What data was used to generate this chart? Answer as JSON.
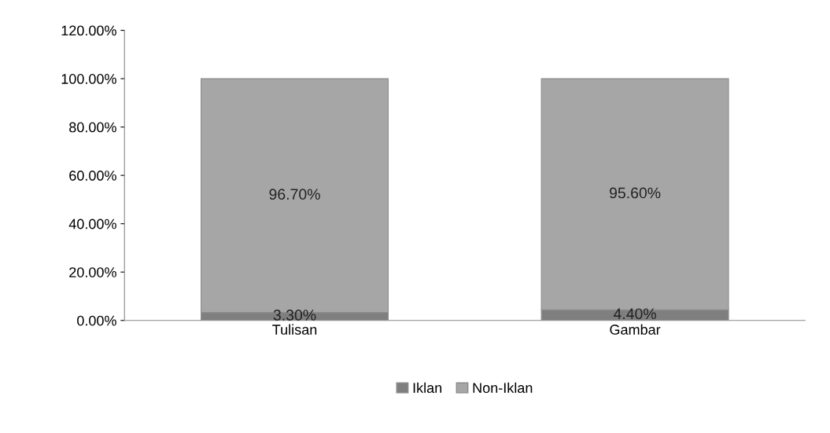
{
  "chart_data": {
    "type": "bar",
    "stacked": true,
    "categories": [
      "Tulisan",
      "Gambar"
    ],
    "series": [
      {
        "name": "Iklan",
        "color": "#7f7f7f",
        "values": [
          3.3,
          4.4
        ],
        "value_labels": [
          "3.30%",
          "4.40%"
        ]
      },
      {
        "name": "Non-Iklan",
        "color": "#a6a6a6",
        "values": [
          96.7,
          95.6
        ],
        "value_labels": [
          "96.70%",
          "95.60%"
        ]
      }
    ],
    "ylim": [
      0,
      120
    ],
    "yticks": [
      {
        "value": 0,
        "label": "0.00%"
      },
      {
        "value": 20,
        "label": "20.00%"
      },
      {
        "value": 40,
        "label": "40.00%"
      },
      {
        "value": 60,
        "label": "60.00%"
      },
      {
        "value": 80,
        "label": "80.00%"
      },
      {
        "value": 100,
        "label": "100.00%"
      },
      {
        "value": 120,
        "label": "120.00%"
      }
    ],
    "legend": "bottom",
    "grid": false
  }
}
